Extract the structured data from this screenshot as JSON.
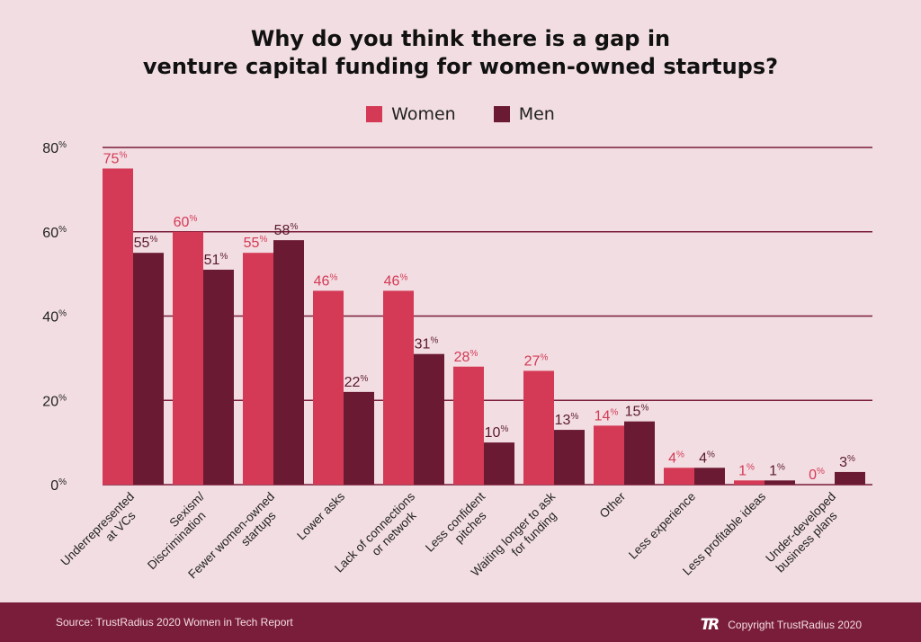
{
  "chart_data": {
    "type": "bar",
    "title_lines": [
      "Why do you think there is a gap in",
      "venture capital funding for women-owned startups?"
    ],
    "categories": [
      [
        "Underrepresented",
        "at VCs"
      ],
      [
        "Sexism/",
        "Discrimination"
      ],
      [
        "Fewer women-owned",
        "startups"
      ],
      [
        "Lower asks"
      ],
      [
        "Lack of connections",
        "or network"
      ],
      [
        "Less confident",
        "pitches"
      ],
      [
        "Waiting longer to ask",
        "for funding"
      ],
      [
        "Other"
      ],
      [
        "Less experience"
      ],
      [
        "Less profitable ideas"
      ],
      [
        "Under-developed",
        "business plans"
      ]
    ],
    "series": [
      {
        "name": "Women",
        "values": [
          75,
          60,
          55,
          46,
          46,
          28,
          27,
          14,
          4,
          1,
          0
        ]
      },
      {
        "name": "Men",
        "values": [
          55,
          51,
          58,
          22,
          31,
          10,
          13,
          15,
          4,
          1,
          3
        ]
      }
    ],
    "y_ticks": [
      0,
      20,
      40,
      60,
      80
    ],
    "ylim": [
      0,
      80
    ],
    "unit": "%",
    "grid": true,
    "legend_position": "top-center",
    "colors": {
      "women": "#d43a55",
      "men": "#6b1a33",
      "gridline": "#7a1d3b",
      "women_label": "#d43a55",
      "men_label": "#5a1a2e"
    }
  },
  "footer": {
    "source": "Source: TrustRadius 2020 Women in Tech Report",
    "logo": "TR",
    "copyright": "Copyright TrustRadius 2020"
  }
}
